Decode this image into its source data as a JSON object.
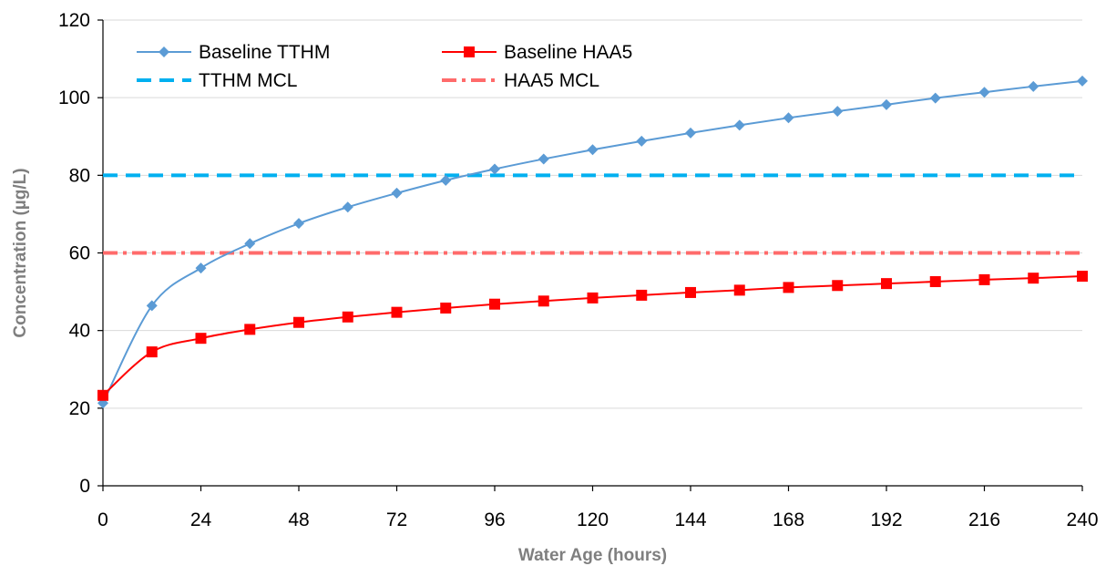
{
  "chart_data": {
    "type": "line",
    "title": "",
    "xlabel": "Water Age (hours)",
    "ylabel": "Concentration (µg/L)",
    "xlim": [
      0,
      240
    ],
    "ylim": [
      0,
      120
    ],
    "x_ticks": [
      0,
      24,
      48,
      72,
      96,
      120,
      144,
      168,
      192,
      216,
      240
    ],
    "y_ticks": [
      0,
      20,
      40,
      60,
      80,
      100,
      120
    ],
    "grid": "horizontal",
    "legend_position": "top-left",
    "series": [
      {
        "name": "Baseline TTHM",
        "marker": "diamond",
        "color": "#5b9bd5",
        "x": [
          0,
          12,
          24,
          36,
          48,
          60,
          72,
          84,
          96,
          108,
          120,
          132,
          144,
          156,
          168,
          180,
          192,
          204,
          216,
          228,
          240
        ],
        "values": [
          21.3,
          46.4,
          56.1,
          62.4,
          67.6,
          71.8,
          75.4,
          78.7,
          81.6,
          84.2,
          86.6,
          88.8,
          90.9,
          92.9,
          94.8,
          96.5,
          98.2,
          99.9,
          101.4,
          102.9,
          104.3
        ]
      },
      {
        "name": "Baseline HAA5",
        "marker": "square",
        "color": "#ff0000",
        "x": [
          0,
          12,
          24,
          36,
          48,
          60,
          72,
          84,
          96,
          108,
          120,
          132,
          144,
          156,
          168,
          180,
          192,
          204,
          216,
          228,
          240
        ],
        "values": [
          23.3,
          34.5,
          38.0,
          40.3,
          42.1,
          43.5,
          44.7,
          45.8,
          46.8,
          47.6,
          48.4,
          49.1,
          49.8,
          50.4,
          51.1,
          51.6,
          52.1,
          52.6,
          53.1,
          53.5,
          54.0
        ]
      },
      {
        "name": "TTHM MCL",
        "line_style": "dashed",
        "color": "#00b0f0",
        "x": [
          0,
          240
        ],
        "values": [
          80,
          80
        ]
      },
      {
        "name": "HAA5 MCL",
        "line_style": "dash-dot",
        "color": "#ff6b6b",
        "x": [
          0,
          240
        ],
        "values": [
          60,
          60
        ]
      }
    ]
  }
}
